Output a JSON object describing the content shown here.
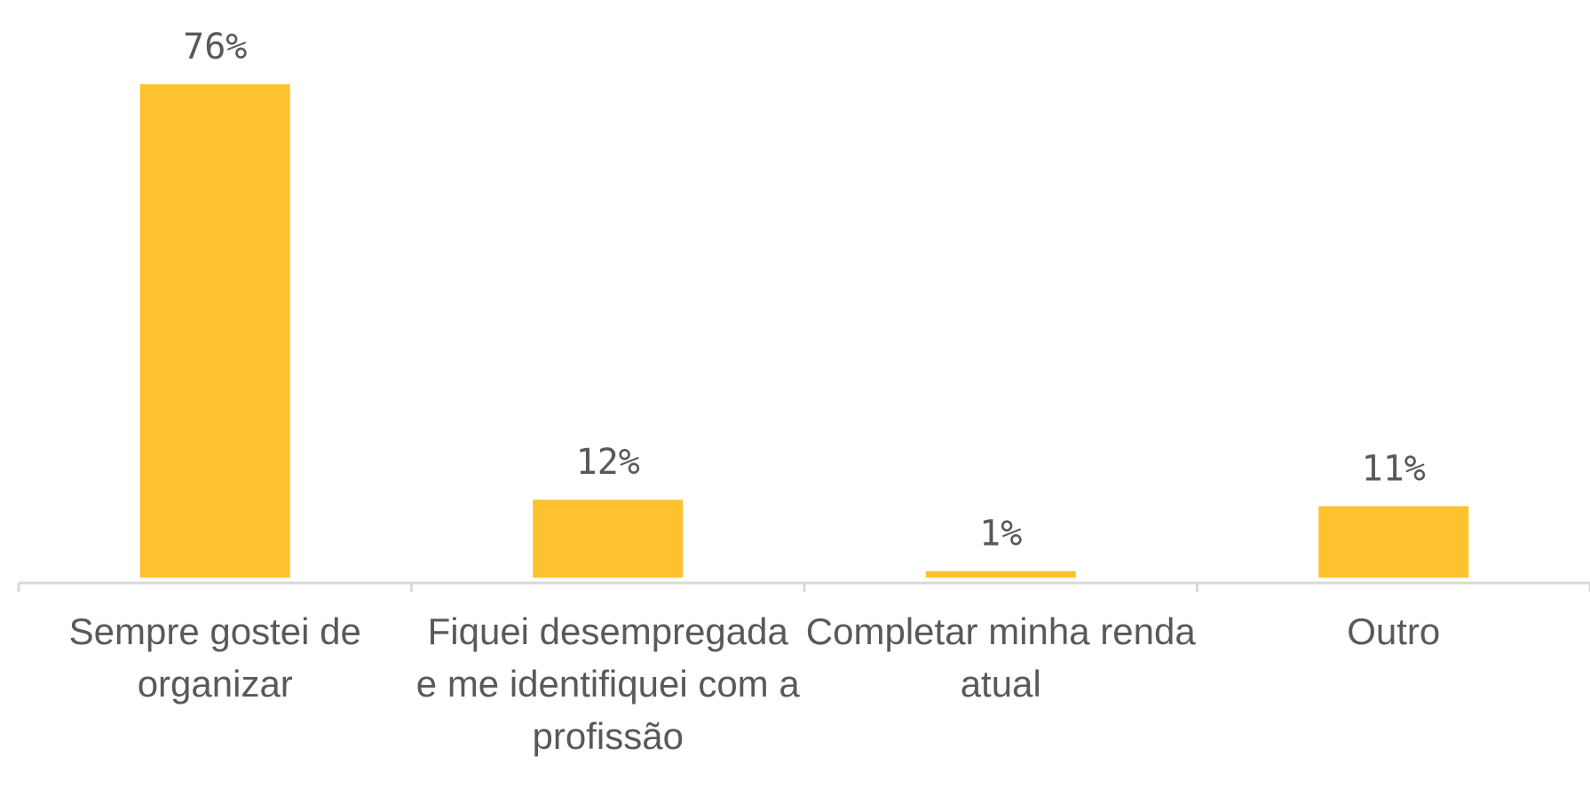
{
  "chart_data": {
    "type": "bar",
    "categories": [
      "Sempre gostei de organizar",
      "Fiquei desempregada e me identifiquei com a profissão",
      "Completar minha renda atual",
      "Outro"
    ],
    "values": [
      76,
      12,
      1,
      11
    ],
    "value_labels": [
      "76%",
      "12%",
      "1%",
      "11%"
    ],
    "color": "#fdc22d",
    "grid": false
  }
}
